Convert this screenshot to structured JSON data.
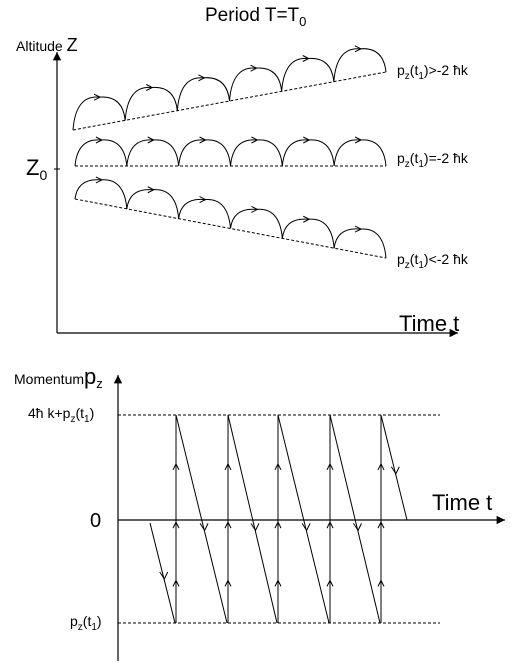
{
  "top_panel": {
    "title": {
      "main": "Period T=T",
      "sub": "0"
    },
    "y_axis_label": {
      "text": "Altitude ",
      "var": "Z"
    },
    "z0_label": {
      "main": "Z",
      "sub": "0"
    },
    "x_axis_label": "Time t",
    "lines": [
      {
        "pre": "p",
        "s1": "z",
        "mid": "(t",
        "s2": "1",
        "post": ")>-2 ħk"
      },
      {
        "pre": "p",
        "s1": "z",
        "mid": "(t",
        "s2": "1",
        "post": ")=-2 ħk"
      },
      {
        "pre": "p",
        "s1": "z",
        "mid": "(t",
        "s2": "1",
        "post": ")<-2 ħk"
      }
    ]
  },
  "bottom_panel": {
    "y_axis_label": {
      "text": "Momentum",
      "var": "p",
      "sub": "z"
    },
    "top_level_label": {
      "pre": "4ħ k+p",
      "s1": "z",
      "mid": "(t",
      "s2": "1",
      "post": ")"
    },
    "zero_label": "0",
    "bottom_level_label": {
      "pre": "p",
      "s1": "z",
      "mid": "(t",
      "s2": "1",
      "post": ")"
    },
    "x_axis_label": "Time t"
  }
}
